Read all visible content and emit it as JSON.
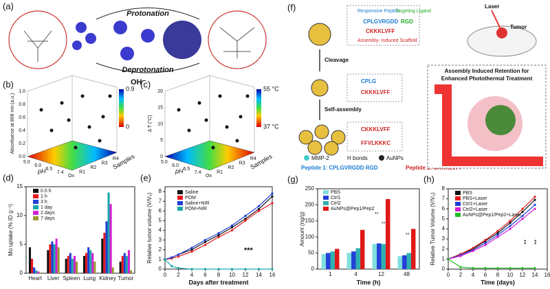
{
  "labels": [
    "(a)",
    "(b)",
    "(c)",
    "(d)",
    "(e)",
    "(f)",
    "(g)",
    "(h)"
  ],
  "panel_a": {
    "top": "Protonation",
    "bottom": "Deprotonation",
    "ion": "OH⁻"
  },
  "panel_b": {
    "z_label": "Absorbance at 808 nm (a.u.)",
    "x_label": "pH",
    "y_label": "Samples",
    "x_ticks": [
      "5.0",
      "6.0",
      "6.5",
      "7.4",
      "Ox"
    ],
    "y_ticks": [
      "R1",
      "R2",
      "R3",
      "R4"
    ],
    "z_ticks": [
      "0.0",
      "0.2",
      "0.4",
      "0.6",
      "0.8",
      "1.0"
    ],
    "colorbar": [
      "0.9",
      "0"
    ]
  },
  "panel_c": {
    "z_label": "Δ T (°C)",
    "x_label": "pH",
    "y_label": "Samples",
    "x_ticks": [
      "5.0",
      "6.0",
      "6.5",
      "7.4",
      "Ox"
    ],
    "y_ticks": [
      "R1",
      "R2",
      "R3",
      "R4"
    ],
    "z_ticks": [
      "0",
      "5",
      "10",
      "15",
      "20"
    ],
    "colorbar": [
      "55 °C",
      "37 °C"
    ]
  },
  "panel_f": {
    "responsive": "Responsive Peptide",
    "targeting": "Targeting Ligand",
    "seq1": "CPLGVRGDD",
    "rgd": "RGD",
    "seq2": "CKKKLVFF",
    "scaffold": "Assembly- Induced Scaffold",
    "cleavage": "Cleavage",
    "cplg": "CPLG",
    "seq2b": "CKKKLVFF",
    "self": "Self-assembly",
    "seq2c": "CKKKLVFF",
    "seq3": "FFVLKKKC",
    "mmp": "MMP-2",
    "hb": "H bonds",
    "au": "AuNPs",
    "pep1": "Peptide 1: CPLGVRGDD RGD",
    "pep2": "Peptide 2: CKKKLVFF",
    "laser": "Laser",
    "tumor": "Tumor",
    "retention": "Assembly Induced Retention for",
    "enhanced": "Enhanced Photothermal Treatment"
  },
  "chart_data": [
    {
      "type": "bar",
      "ylabel": "Mo uptake (% ID g⁻¹)",
      "categories": [
        "Heart",
        "Liver",
        "Spleen",
        "Lung",
        "Kidney",
        "Tumor"
      ],
      "ylim": [
        0,
        15
      ],
      "yticks": [
        0,
        5,
        10,
        15
      ],
      "series": [
        {
          "name": "0.5 h",
          "color": "#111111",
          "values": [
            4.5,
            4,
            2.5,
            3,
            6,
            2
          ]
        },
        {
          "name": "1 h",
          "color": "#e41a1c",
          "values": [
            2.5,
            5,
            3,
            3.5,
            7,
            3
          ]
        },
        {
          "name": "3 h",
          "color": "#1f3fd6",
          "values": [
            1,
            5.5,
            3.5,
            4.5,
            9,
            3.5
          ]
        },
        {
          "name": "1 day",
          "color": "#1aa7a7",
          "values": [
            0.5,
            5,
            2.5,
            4,
            14,
            3
          ]
        },
        {
          "name": "2 days",
          "color": "#d21fd2",
          "values": [
            0.3,
            6,
            3,
            3.5,
            12,
            4
          ]
        },
        {
          "name": "7 days",
          "color": "#9a9a2a",
          "values": [
            0.1,
            4.5,
            2,
            2,
            1,
            0.5
          ]
        }
      ]
    },
    {
      "type": "line",
      "xlabel": "Days after treatment",
      "ylabel": "Relative tumor volume (V/V₀)",
      "annotation": "***",
      "x": [
        0,
        1,
        2,
        4,
        6,
        8,
        10,
        12,
        14,
        16
      ],
      "xlim": [
        0,
        16
      ],
      "xticks": [
        0,
        2,
        4,
        6,
        8,
        10,
        12,
        14,
        16
      ],
      "ylim": [
        0,
        8.5
      ],
      "yticks": [
        0,
        1,
        2,
        3,
        4,
        5,
        6,
        7,
        8
      ],
      "series": [
        {
          "name": "Saline",
          "color": "#111111",
          "values": [
            1,
            1.2,
            1.5,
            2,
            2.8,
            3.5,
            4.3,
            5.2,
            6.2,
            7.5
          ]
        },
        {
          "name": "POM",
          "color": "#e41a1c",
          "values": [
            1,
            1.1,
            1.3,
            1.8,
            2.5,
            3.3,
            4,
            5,
            6,
            6.8
          ]
        },
        {
          "name": "Saline+NIR",
          "color": "#1f3fd6",
          "values": [
            1,
            1.2,
            1.5,
            2.2,
            3,
            3.7,
            4.5,
            5.5,
            6.5,
            7.8
          ]
        },
        {
          "name": "POM+NIR",
          "color": "#1aa7a7",
          "values": [
            1,
            0.3,
            0.1,
            0,
            0,
            0,
            0,
            0,
            0,
            0
          ]
        }
      ]
    },
    {
      "type": "bar",
      "xlabel": "Time (h)",
      "ylabel": "Amount (ng/g)",
      "annotations": [
        "**",
        "**",
        "**"
      ],
      "categories": [
        "1",
        "4",
        "12",
        "48"
      ],
      "ylim": [
        0,
        250
      ],
      "yticks": [
        0,
        50,
        100,
        150,
        200,
        250
      ],
      "series": [
        {
          "name": "PBS",
          "color": "#7fdede",
          "values": [
            47,
            50,
            78,
            40
          ]
        },
        {
          "name": "Ctrl1",
          "color": "#2340d8",
          "values": [
            50,
            55,
            80,
            43
          ]
        },
        {
          "name": "Ctrl2",
          "color": "#2fb0b0",
          "values": [
            55,
            65,
            78,
            50
          ]
        },
        {
          "name": "AuNPs@Pep1/Pep2",
          "color": "#e01818",
          "values": [
            63,
            122,
            218,
            125
          ]
        }
      ]
    },
    {
      "type": "line",
      "xlabel": "Time (days)",
      "ylabel": "Relative Tumor Volume (V/V₀)",
      "annotations": [
        "**",
        "**"
      ],
      "x": [
        0,
        2,
        4,
        6,
        8,
        10,
        12,
        14
      ],
      "xlim": [
        0,
        16
      ],
      "xticks": [
        0,
        2,
        4,
        6,
        8,
        10,
        12,
        14,
        16
      ],
      "ylim": [
        0,
        8
      ],
      "yticks": [
        0,
        1,
        2,
        3,
        4,
        5,
        6,
        7,
        8
      ],
      "series": [
        {
          "name": "PBS",
          "color": "#111111",
          "values": [
            1,
            1.5,
            2,
            2.8,
            3.6,
            4.6,
            5.7,
            6.9
          ]
        },
        {
          "name": "PBS+Laser",
          "color": "#e41a1c",
          "values": [
            1,
            1.5,
            2.1,
            2.9,
            3.8,
            4.8,
            6,
            7.2
          ]
        },
        {
          "name": "Ctrl1+Laser",
          "color": "#1f3fd6",
          "values": [
            1,
            1.4,
            1.9,
            2.6,
            3.4,
            4.3,
            5.3,
            6.4
          ]
        },
        {
          "name": "Ctrl2+Laser",
          "color": "#d21fd2",
          "values": [
            1,
            1.3,
            1.8,
            2.4,
            3.2,
            4,
            5,
            6
          ]
        },
        {
          "name": "AuNPs@Pep1/Pep2+Laser",
          "color": "#22bb22",
          "values": [
            1,
            0.2,
            0.1,
            0.1,
            0.1,
            0.1,
            0.1,
            0.1
          ]
        }
      ]
    }
  ]
}
